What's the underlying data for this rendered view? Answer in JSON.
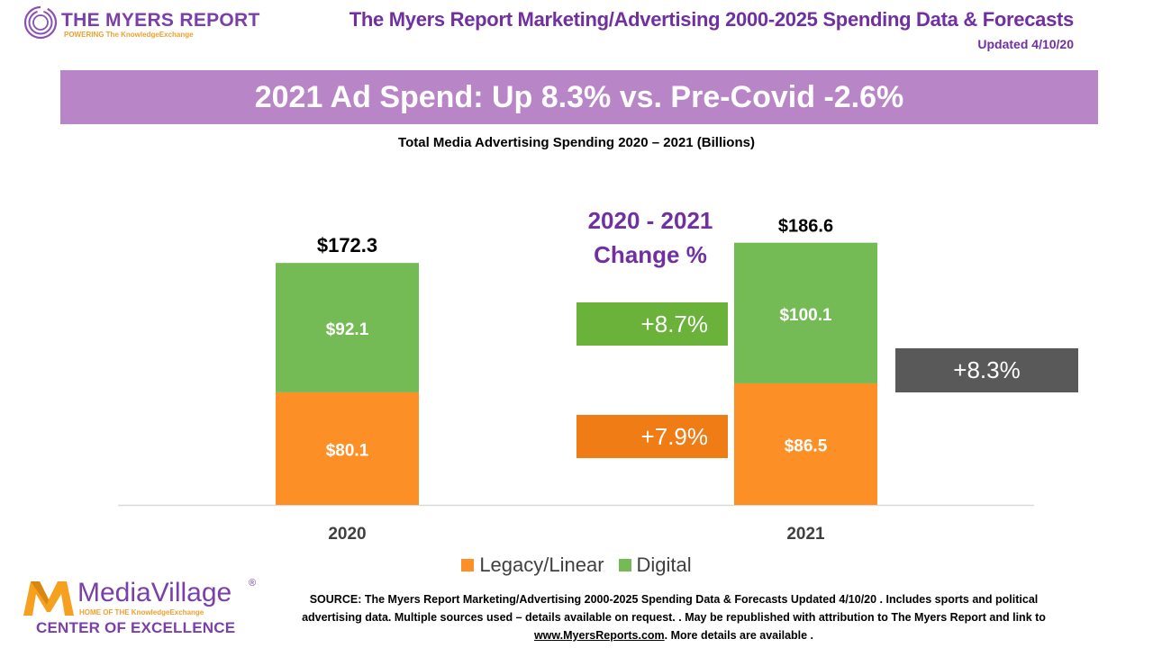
{
  "header": {
    "logo_brand": "THE MYERS REPORT",
    "logo_tagline": "POWERING The KnowledgeExchange",
    "title": "The Myers Report Marketing/Advertising 2000-2025 Spending Data & Forecasts",
    "updated": "Updated 4/10/20"
  },
  "banner": {
    "text": "2021 Ad Spend:  Up 8.3% vs. Pre-Covid -2.6%"
  },
  "change_panel": {
    "heading_line1": "2020 - 2021",
    "heading_line2": "Change %",
    "digital_change": "+8.7%",
    "legacy_change": "+7.9%",
    "total_change": "+8.3%"
  },
  "colors": {
    "legacy": "#fd8f27",
    "digital": "#74bb55",
    "digital_change_box": "#6ab23a",
    "legacy_change_box": "#f07c16",
    "total_change_box": "#595959",
    "brand_purple": "#7030a0",
    "banner": "#b886c6"
  },
  "chart_data": {
    "type": "bar",
    "stacked": true,
    "title": "Total Media Advertising Spending 2020 – 2021 (Billions)",
    "xlabel": "",
    "ylabel": "",
    "categories": [
      "2020",
      "2021"
    ],
    "series": [
      {
        "name": "Legacy/Linear",
        "values": [
          80.1,
          86.5
        ],
        "labels": [
          "$80.1",
          "$86.5"
        ]
      },
      {
        "name": "Digital",
        "values": [
          92.1,
          100.1
        ],
        "labels": [
          "$92.1",
          "$100.1"
        ]
      }
    ],
    "totals": [
      172.3,
      186.6
    ],
    "total_labels": [
      "$172.3",
      "$186.6"
    ],
    "ylim": [
      0,
      172.3
    ],
    "grid": false,
    "legend": "bottom-center"
  },
  "legend": [
    {
      "label": "Legacy/Linear"
    },
    {
      "label": "Digital"
    }
  ],
  "footer": {
    "logo_name": "MediaVillage",
    "logo_reg": "®",
    "logo_home": "HOME OF THE KnowledgeExchange",
    "logo_coe": "CENTER OF EXCELLENCE",
    "source_line1": "SOURCE: The Myers Report Marketing/Advertising 2000-2025 Spending Data & Forecasts Updated 4/10/20 . Includes sports and political",
    "source_line2": "advertising data. Multiple sources used – details available on request. . May be republished with attribution to The Myers Report and link to",
    "source_link": "www.MyersReports.com",
    "source_line3_rest": ". More details are available ."
  }
}
